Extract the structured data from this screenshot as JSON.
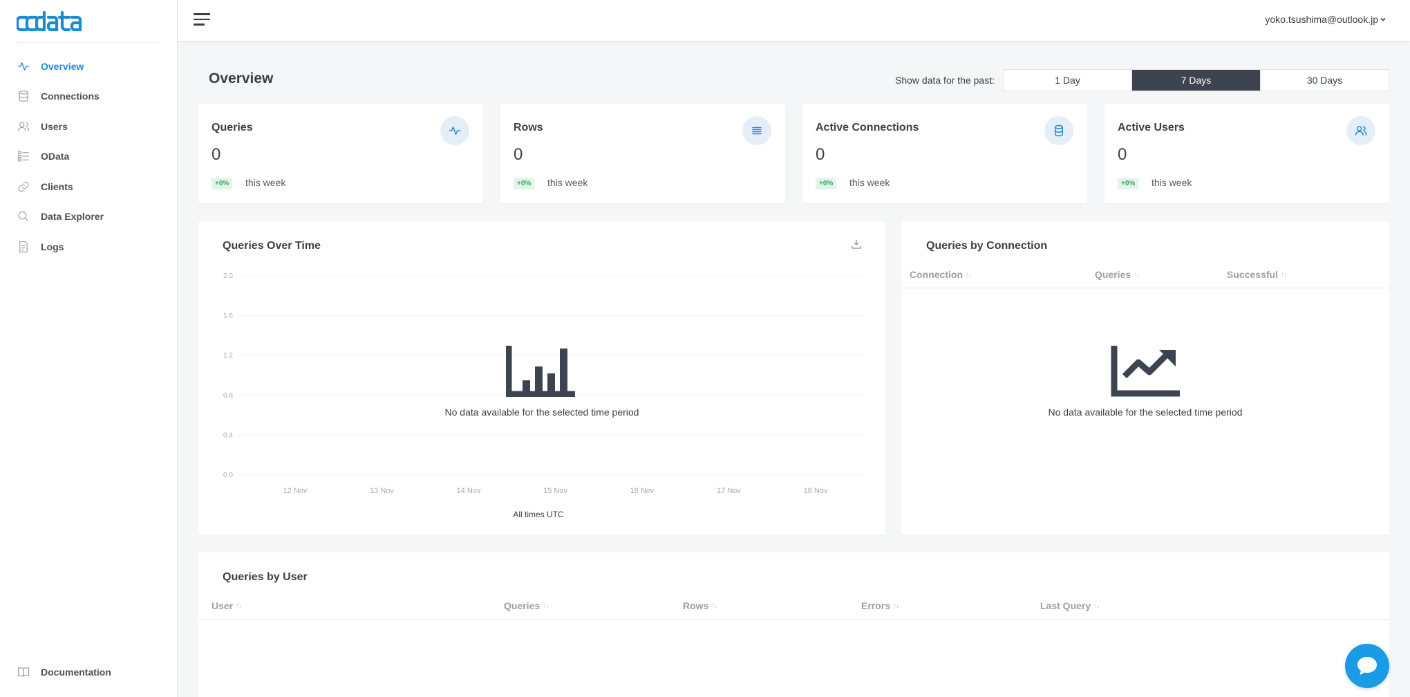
{
  "brand": {
    "logo_text": "cdata",
    "accent": "#1b8bd0"
  },
  "sidebar": {
    "items": [
      {
        "label": "Overview",
        "icon": "activity-icon",
        "active": true
      },
      {
        "label": "Connections",
        "icon": "database-icon"
      },
      {
        "label": "Users",
        "icon": "users-icon"
      },
      {
        "label": "OData",
        "icon": "list-icon"
      },
      {
        "label": "Clients",
        "icon": "link-icon"
      },
      {
        "label": "Data Explorer",
        "icon": "search-icon"
      },
      {
        "label": "Logs",
        "icon": "file-icon"
      }
    ],
    "documentation": "Documentation"
  },
  "header": {
    "user_email": "yoko.tsushima@outlook.jp"
  },
  "main": {
    "title": "Overview",
    "range_label": "Show data for the past:",
    "ranges": [
      "1 Day",
      "7 Days",
      "30 Days"
    ],
    "selected_range": "7 Days",
    "stats": [
      {
        "title": "Queries",
        "value": "0",
        "badge": "+0%",
        "note": "this week",
        "icon": "activity-icon"
      },
      {
        "title": "Rows",
        "value": "0",
        "badge": "+0%",
        "note": "this week",
        "icon": "rows-icon"
      },
      {
        "title": "Active Connections",
        "value": "0",
        "badge": "+0%",
        "note": "this week",
        "icon": "database-icon"
      },
      {
        "title": "Active Users",
        "value": "0",
        "badge": "+0%",
        "note": "this week",
        "icon": "users-icon"
      }
    ],
    "queries_over_time": {
      "title": "Queries Over Time",
      "empty_text": "No data available for the selected time period",
      "footer": "All times UTC"
    },
    "queries_by_connection": {
      "title": "Queries by Connection",
      "columns": [
        "Connection",
        "Queries",
        "Successful"
      ],
      "empty_text": "No data available for the selected time period"
    },
    "queries_by_user": {
      "title": "Queries by User",
      "columns": [
        "User",
        "Queries",
        "Rows",
        "Errors",
        "Last Query"
      ]
    }
  },
  "chart_data": {
    "type": "line",
    "title": "Queries Over Time",
    "x": [
      "12 Nov",
      "13 Nov",
      "14 Nov",
      "15 Nov",
      "16 Nov",
      "17 Nov",
      "18 Nov"
    ],
    "yticks": [
      "2.0",
      "1.6",
      "1.2",
      "0.8",
      "0.4",
      "0.0"
    ],
    "ylim": [
      0,
      2
    ],
    "series": [],
    "grid": true
  }
}
